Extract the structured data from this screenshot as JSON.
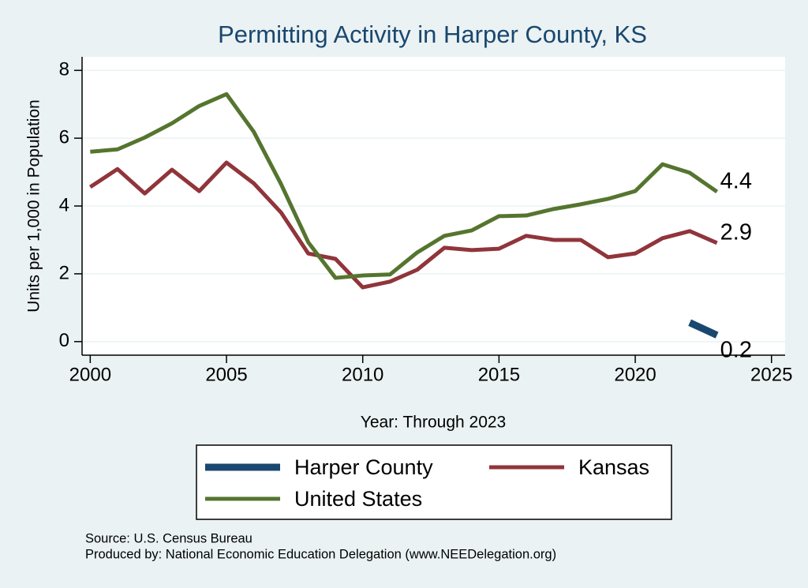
{
  "chart_data": {
    "type": "line",
    "title": "Permitting Activity in Harper County, KS",
    "x_label": "Year: Through 2023",
    "y_label": "Units per 1,000 in Population",
    "x": [
      2000,
      2001,
      2002,
      2003,
      2004,
      2005,
      2006,
      2007,
      2008,
      2009,
      2010,
      2011,
      2012,
      2013,
      2014,
      2015,
      2016,
      2017,
      2018,
      2019,
      2020,
      2021,
      2022,
      2023
    ],
    "series": [
      {
        "name": "Harper County",
        "color": "#1a476f",
        "values": [
          null,
          null,
          null,
          null,
          null,
          null,
          null,
          null,
          null,
          null,
          null,
          null,
          null,
          null,
          null,
          null,
          null,
          null,
          null,
          null,
          null,
          null,
          0.56,
          0.19
        ],
        "value_labels": [
          null,
          null,
          null,
          null,
          null,
          null,
          null,
          null,
          null,
          null,
          null,
          null,
          null,
          null,
          null,
          null,
          null,
          null,
          null,
          null,
          null,
          null,
          null,
          "0.2"
        ]
      },
      {
        "name": "Kansas",
        "color": "#90353b",
        "values": [
          4.56,
          5.09,
          4.37,
          5.07,
          4.44,
          5.28,
          4.67,
          3.81,
          2.6,
          2.44,
          1.6,
          1.77,
          2.12,
          2.77,
          2.7,
          2.74,
          3.12,
          3.0,
          3.0,
          2.49,
          2.6,
          3.05,
          3.26,
          2.91
        ],
        "value_labels": [
          null,
          null,
          null,
          null,
          null,
          null,
          null,
          null,
          null,
          null,
          null,
          null,
          null,
          null,
          null,
          null,
          null,
          null,
          null,
          null,
          null,
          null,
          null,
          "2.9"
        ]
      },
      {
        "name": "United States",
        "color": "#55752f",
        "values": [
          5.6,
          5.67,
          6.02,
          6.44,
          6.95,
          7.3,
          6.19,
          4.65,
          2.93,
          1.88,
          1.95,
          1.98,
          2.63,
          3.12,
          3.28,
          3.7,
          3.72,
          3.91,
          4.05,
          4.21,
          4.44,
          5.23,
          4.98,
          4.42
        ],
        "value_labels": [
          null,
          null,
          null,
          null,
          null,
          null,
          null,
          null,
          null,
          null,
          null,
          null,
          null,
          null,
          null,
          null,
          null,
          null,
          null,
          null,
          null,
          null,
          null,
          "4.4"
        ]
      }
    ],
    "xlim": [
      1999.7,
      2025.5
    ],
    "xticks": [
      2000,
      2005,
      2010,
      2015,
      2020,
      2025
    ],
    "ylim": [
      -0.4,
      8.4
    ],
    "yticks": [
      0,
      2,
      4,
      6,
      8
    ],
    "grid": true,
    "legend_position": "bottom",
    "notes": [
      "Source: U.S. Census Bureau",
      "Produced by: National Economic Education Delegation (www.NEEDelegation.org)"
    ]
  }
}
